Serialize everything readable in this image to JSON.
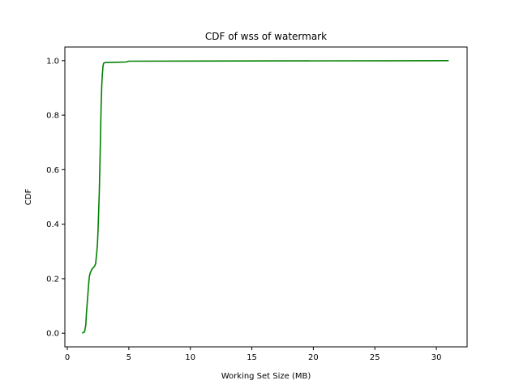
{
  "chart_data": {
    "type": "line",
    "title": "CDF of wss of watermark",
    "xlabel": "Working Set Size (MB)",
    "ylabel": "CDF",
    "xlim": [
      -0.2,
      32.5
    ],
    "ylim": [
      -0.05,
      1.05
    ],
    "xticks": [
      0,
      5,
      10,
      15,
      20,
      25,
      30
    ],
    "yticks": [
      0.0,
      0.2,
      0.4,
      0.6,
      0.8,
      1.0
    ],
    "xtick_labels": [
      "0",
      "5",
      "10",
      "15",
      "20",
      "25",
      "30"
    ],
    "ytick_labels": [
      "0.0",
      "0.2",
      "0.4",
      "0.6",
      "0.8",
      "1.0"
    ],
    "grid": false,
    "series": [
      {
        "color": "#008000",
        "x": [
          1.2,
          1.4,
          1.5,
          1.55,
          1.6,
          1.65,
          1.7,
          1.75,
          1.8,
          1.85,
          1.9,
          1.95,
          2.0,
          2.1,
          2.2,
          2.3,
          2.4,
          2.45,
          2.5,
          2.55,
          2.6,
          2.65,
          2.7,
          2.75,
          2.8,
          2.85,
          2.9,
          2.95,
          3.0,
          3.1,
          3.2,
          4.8,
          5.0,
          31.0
        ],
        "y": [
          0.0,
          0.005,
          0.03,
          0.07,
          0.1,
          0.13,
          0.16,
          0.19,
          0.21,
          0.22,
          0.225,
          0.23,
          0.235,
          0.24,
          0.245,
          0.255,
          0.3,
          0.33,
          0.38,
          0.45,
          0.52,
          0.62,
          0.73,
          0.84,
          0.91,
          0.95,
          0.98,
          0.99,
          0.992,
          0.993,
          0.993,
          0.995,
          0.998,
          1.0
        ]
      }
    ]
  }
}
